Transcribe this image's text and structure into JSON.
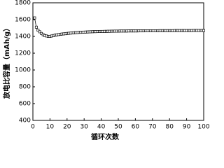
{
  "chart_data": {
    "type": "line",
    "x_label": "循环次数",
    "y_label": "放电比容量（mAh/g）",
    "x": [
      1,
      2,
      3,
      4,
      5,
      6,
      7,
      8,
      9,
      10,
      11,
      12,
      13,
      14,
      15,
      16,
      17,
      18,
      19,
      20,
      21,
      22,
      23,
      24,
      25,
      26,
      27,
      28,
      29,
      30,
      31,
      32,
      33,
      34,
      35,
      36,
      37,
      38,
      39,
      40,
      41,
      42,
      43,
      44,
      45,
      46,
      47,
      48,
      49,
      50,
      51,
      52,
      53,
      54,
      55,
      56,
      57,
      58,
      59,
      60,
      61,
      62,
      63,
      64,
      65,
      66,
      67,
      68,
      69,
      70,
      71,
      72,
      73,
      74,
      75,
      76,
      77,
      78,
      79,
      80,
      81,
      82,
      83,
      84,
      85,
      86,
      87,
      88,
      89,
      90,
      91,
      92,
      93,
      94,
      95,
      96,
      97,
      98,
      99,
      100
    ],
    "series": [
      {
        "color": "#000000",
        "marker": "square",
        "values": [
          1620,
          1510,
          1475,
          1455,
          1435,
          1420,
          1410,
          1405,
          1400,
          1400,
          1405,
          1410,
          1415,
          1418,
          1422,
          1425,
          1428,
          1430,
          1432,
          1435,
          1437,
          1439,
          1441,
          1443,
          1445,
          1446,
          1448,
          1449,
          1450,
          1451,
          1452,
          1453,
          1454,
          1455,
          1456,
          1457,
          1457,
          1458,
          1458,
          1459,
          1459,
          1460,
          1460,
          1461,
          1461,
          1462,
          1462,
          1463,
          1463,
          1463,
          1464,
          1464,
          1464,
          1464,
          1464,
          1465,
          1465,
          1465,
          1465,
          1465,
          1465,
          1466,
          1466,
          1466,
          1466,
          1467,
          1467,
          1467,
          1467,
          1467,
          1467,
          1467,
          1467,
          1468,
          1468,
          1468,
          1468,
          1468,
          1468,
          1468,
          1468,
          1468,
          1469,
          1469,
          1469,
          1469,
          1469,
          1469,
          1469,
          1469,
          1469,
          1469,
          1469,
          1470,
          1470,
          1470,
          1470,
          1470,
          1470,
          1470
        ]
      }
    ],
    "xlim": [
      0,
      100
    ],
    "xticks": [
      0,
      10,
      20,
      30,
      40,
      50,
      60,
      70,
      80,
      90,
      100
    ],
    "ylim": [
      400,
      1800
    ],
    "yticks": [
      400,
      600,
      800,
      1000,
      1200,
      1400,
      1600,
      1800
    ]
  }
}
